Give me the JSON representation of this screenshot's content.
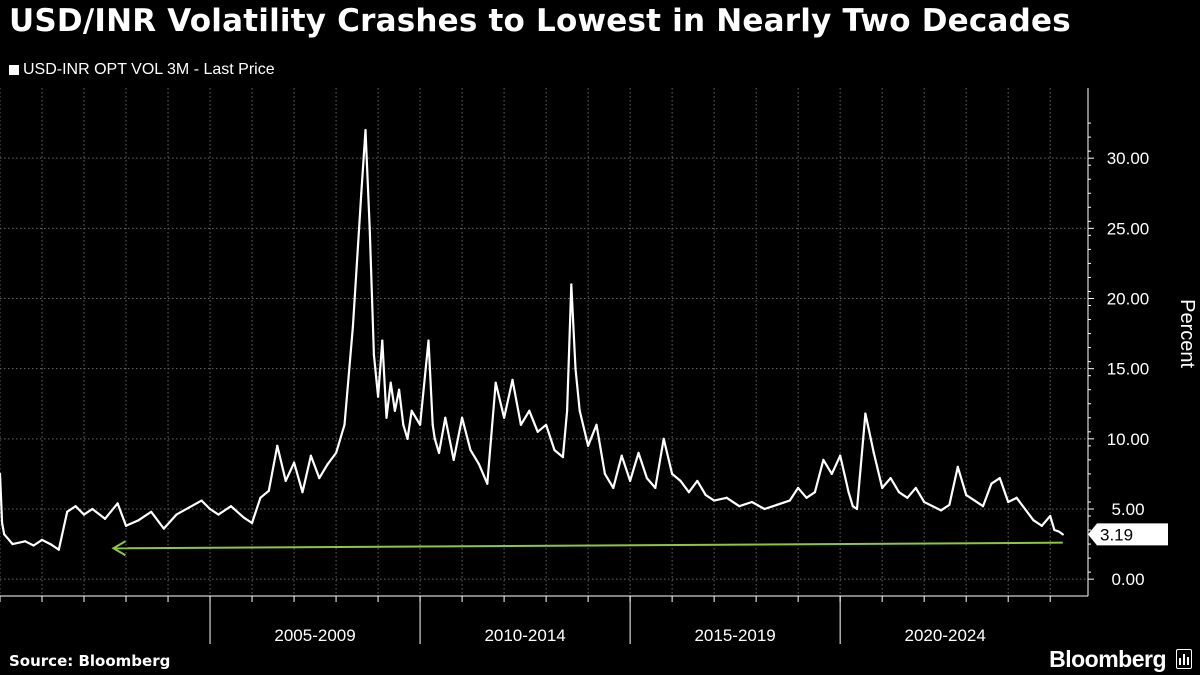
{
  "header": {
    "title": "USD/INR Volatility Crashes to Lowest in Nearly Two Decades",
    "legend_label": "USD-INR OPT VOL 3M - Last Price"
  },
  "footer": {
    "source": "Source: Bloomberg",
    "brand": "Bloomberg"
  },
  "colors": {
    "background": "#000000",
    "series": "#ffffff",
    "gridline": "#666666",
    "annotation_arrow": "#8dc63f"
  },
  "chart_data": {
    "type": "line",
    "title": "USD/INR Volatility Crashes to Lowest in Nearly Two Decades",
    "xlabel": "",
    "ylabel": "Percent",
    "ylim": [
      -1.2,
      35
    ],
    "xlim": [
      2000.0,
      2025.9
    ],
    "y_ticks": [
      0,
      5,
      10,
      15,
      20,
      25,
      30
    ],
    "y_tick_labels": [
      "0.00",
      "5.00",
      "10.00",
      "15.00",
      "20.00",
      "25.00",
      "30.00"
    ],
    "x_group_labels": [
      {
        "label": "2005-2009",
        "center": 2007.5
      },
      {
        "label": "2010-2014",
        "center": 2012.5
      },
      {
        "label": "2015-2019",
        "center": 2017.5
      },
      {
        "label": "2020-2024",
        "center": 2022.5
      }
    ],
    "x_group_boundaries": [
      2005,
      2010,
      2015,
      2020
    ],
    "grid": true,
    "last_value_label": "3.19",
    "annotation": {
      "type": "arrow",
      "from": [
        2025.3,
        2.6
      ],
      "to": [
        2002.7,
        2.2
      ],
      "color": "#8dc63f"
    },
    "series": [
      {
        "name": "USD-INR OPT VOL 3M - Last Price",
        "x": [
          2000.0,
          2000.05,
          2000.1,
          2000.3,
          2000.6,
          2000.8,
          2001.0,
          2001.2,
          2001.4,
          2001.6,
          2001.8,
          2002.0,
          2002.2,
          2002.5,
          2002.8,
          2003.0,
          2003.3,
          2003.6,
          2003.9,
          2004.2,
          2004.5,
          2004.8,
          2005.0,
          2005.2,
          2005.5,
          2005.8,
          2006.0,
          2006.2,
          2006.4,
          2006.6,
          2006.8,
          2007.0,
          2007.2,
          2007.4,
          2007.6,
          2007.8,
          2008.0,
          2008.2,
          2008.4,
          2008.6,
          2008.7,
          2008.8,
          2008.9,
          2009.0,
          2009.1,
          2009.2,
          2009.3,
          2009.4,
          2009.5,
          2009.6,
          2009.7,
          2009.8,
          2010.0,
          2010.2,
          2010.3,
          2010.35,
          2010.45,
          2010.6,
          2010.8,
          2011.0,
          2011.2,
          2011.4,
          2011.6,
          2011.8,
          2012.0,
          2012.2,
          2012.4,
          2012.6,
          2012.8,
          2013.0,
          2013.2,
          2013.4,
          2013.5,
          2013.6,
          2013.7,
          2013.8,
          2014.0,
          2014.2,
          2014.4,
          2014.6,
          2014.8,
          2015.0,
          2015.2,
          2015.4,
          2015.6,
          2015.8,
          2016.0,
          2016.2,
          2016.4,
          2016.6,
          2016.8,
          2017.0,
          2017.3,
          2017.6,
          2017.9,
          2018.2,
          2018.5,
          2018.8,
          2019.0,
          2019.2,
          2019.4,
          2019.6,
          2019.8,
          2020.0,
          2020.1,
          2020.2,
          2020.3,
          2020.4,
          2020.6,
          2020.8,
          2021.0,
          2021.2,
          2021.4,
          2021.6,
          2021.8,
          2022.0,
          2022.2,
          2022.4,
          2022.6,
          2022.8,
          2023.0,
          2023.2,
          2023.4,
          2023.6,
          2023.8,
          2024.0,
          2024.2,
          2024.4,
          2024.6,
          2024.8,
          2025.0,
          2025.1,
          2025.2,
          2025.3
        ],
        "values": [
          7.5,
          4.0,
          3.2,
          2.5,
          2.7,
          2.4,
          2.8,
          2.5,
          2.1,
          4.8,
          5.2,
          4.6,
          5.0,
          4.3,
          5.4,
          3.8,
          4.2,
          4.8,
          3.6,
          4.6,
          5.1,
          5.6,
          5.0,
          4.6,
          5.2,
          4.4,
          4.0,
          5.8,
          6.3,
          9.5,
          7.0,
          8.3,
          6.2,
          8.8,
          7.2,
          8.2,
          9.0,
          11.0,
          18.0,
          27.5,
          32.0,
          25.0,
          16.0,
          13.0,
          17.0,
          11.5,
          14.0,
          12.0,
          13.5,
          11.0,
          10.0,
          12.0,
          11.0,
          17.0,
          11.0,
          10.0,
          9.0,
          11.5,
          8.5,
          11.5,
          9.2,
          8.2,
          6.8,
          14.0,
          11.5,
          14.2,
          11.0,
          12.0,
          10.5,
          11.0,
          9.2,
          8.7,
          12.0,
          21.0,
          15.0,
          12.0,
          9.5,
          11.0,
          7.5,
          6.5,
          8.8,
          7.0,
          9.0,
          7.2,
          6.5,
          10.0,
          7.5,
          7.0,
          6.2,
          7.0,
          6.0,
          5.6,
          5.8,
          5.2,
          5.5,
          5.0,
          5.3,
          5.6,
          6.5,
          5.8,
          6.2,
          8.5,
          7.5,
          8.8,
          7.5,
          6.2,
          5.2,
          5.0,
          11.8,
          9.0,
          6.5,
          7.2,
          6.2,
          5.8,
          6.5,
          5.5,
          5.2,
          4.9,
          5.3,
          8.0,
          6.0,
          5.6,
          5.2,
          6.8,
          7.2,
          5.5,
          5.8,
          5.0,
          4.2,
          3.8,
          4.5,
          3.5,
          3.4,
          3.19
        ]
      }
    ]
  }
}
